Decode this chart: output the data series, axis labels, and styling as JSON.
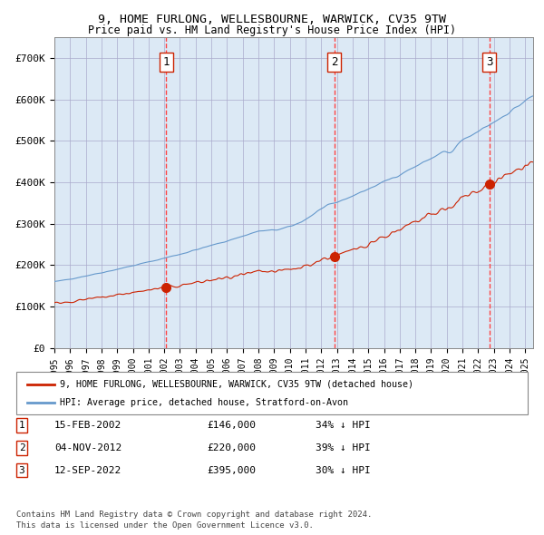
{
  "title1": "9, HOME FURLONG, WELLESBOURNE, WARWICK, CV35 9TW",
  "title2": "Price paid vs. HM Land Registry's House Price Index (HPI)",
  "background_color": "#dce9f5",
  "plot_bg_color": "#dce9f5",
  "hpi_color": "#6699cc",
  "price_color": "#cc2200",
  "sale_marker_color": "#cc2200",
  "vline_color": "#ff4444",
  "ylabel_ticks": [
    "£0",
    "£100K",
    "£200K",
    "£300K",
    "£400K",
    "£500K",
    "£600K",
    "£700K"
  ],
  "ytick_vals": [
    0,
    100000,
    200000,
    300000,
    400000,
    500000,
    600000,
    700000
  ],
  "ylim": [
    0,
    750000
  ],
  "xlim_start": 1995.0,
  "xlim_end": 2025.5,
  "sale1_date": 2002.12,
  "sale1_price": 146000,
  "sale1_label": "1",
  "sale2_date": 2012.84,
  "sale2_price": 220000,
  "sale2_label": "2",
  "sale3_date": 2022.7,
  "sale3_price": 395000,
  "sale3_label": "3",
  "legend_line1": "9, HOME FURLONG, WELLESBOURNE, WARWICK, CV35 9TW (detached house)",
  "legend_line2": "HPI: Average price, detached house, Stratford-on-Avon",
  "table_entries": [
    {
      "num": "1",
      "date": "15-FEB-2002",
      "price": "£146,000",
      "pct": "34% ↓ HPI"
    },
    {
      "num": "2",
      "date": "04-NOV-2012",
      "price": "£220,000",
      "pct": "39% ↓ HPI"
    },
    {
      "num": "3",
      "date": "12-SEP-2022",
      "price": "£395,000",
      "pct": "30% ↓ HPI"
    }
  ],
  "footnote1": "Contains HM Land Registry data © Crown copyright and database right 2024.",
  "footnote2": "This data is licensed under the Open Government Licence v3.0."
}
